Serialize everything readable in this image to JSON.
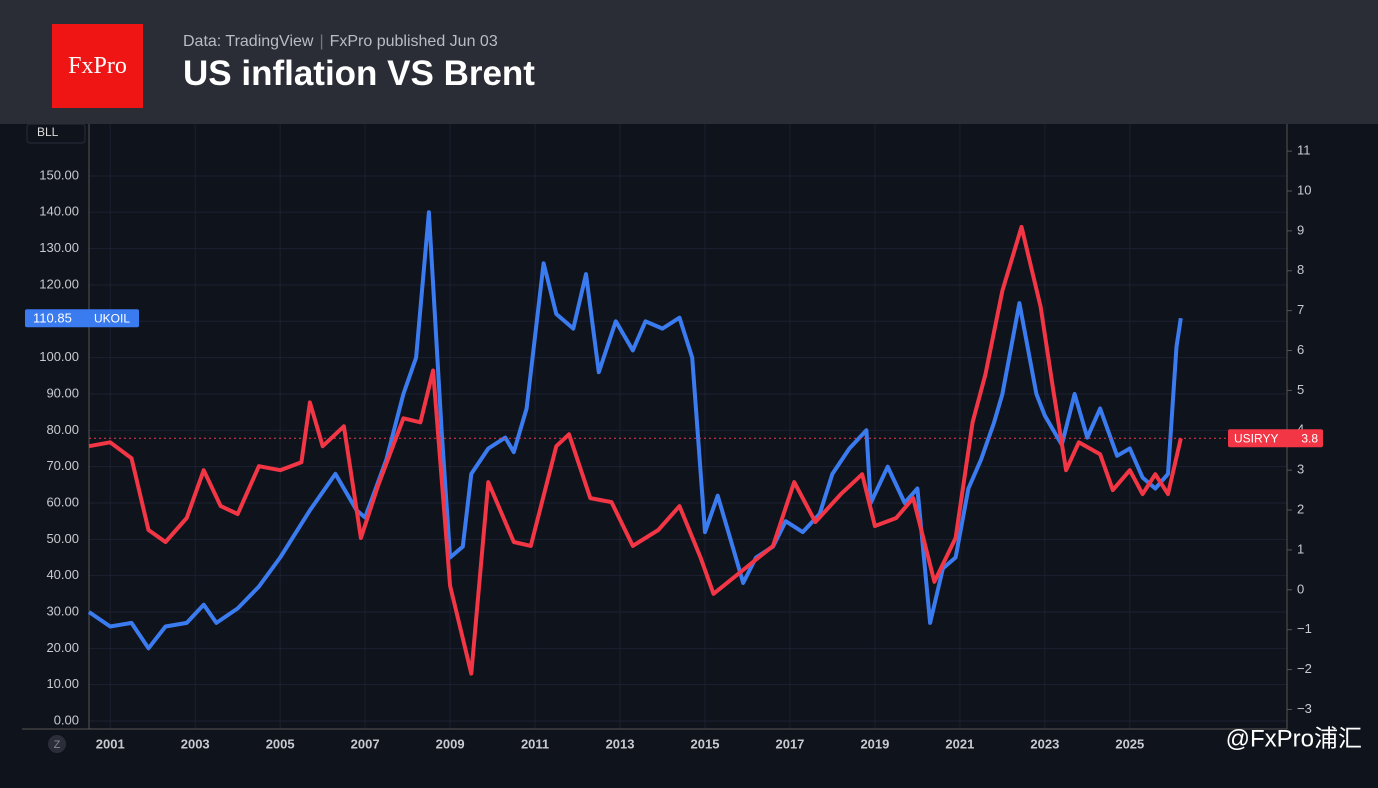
{
  "header": {
    "logo": "FxPro",
    "source": "Data: TradingView",
    "publisher": "FxPro published Jun 03",
    "title": "US inflation VS Brent"
  },
  "watermark": "@FxPro浦汇",
  "chart_data": {
    "type": "line",
    "title": "US inflation VS Brent",
    "y_unit": "BLL",
    "xlim": [
      2000.5,
      2028.7
    ],
    "xticks": [
      2001,
      2003,
      2005,
      2007,
      2009,
      2011,
      2013,
      2015,
      2017,
      2019,
      2021,
      2023,
      2025
    ],
    "ylim": [
      -2.2,
      164.3
    ],
    "yticks": [
      {
        "value": 0,
        "label": "0.00"
      },
      {
        "value": 10,
        "label": "10.00"
      },
      {
        "value": 20,
        "label": "20.00"
      },
      {
        "value": 30,
        "label": "30.00"
      },
      {
        "value": 40,
        "label": "40.00"
      },
      {
        "value": 50,
        "label": "50.00"
      },
      {
        "value": 60,
        "label": "60.00"
      },
      {
        "value": 70,
        "label": "70.00"
      },
      {
        "value": 80,
        "label": "80.00"
      },
      {
        "value": 90,
        "label": "90.00"
      },
      {
        "value": 100,
        "label": "100.00"
      },
      {
        "value": 110,
        "label": "110.00"
      },
      {
        "value": 120,
        "label": "120.00"
      },
      {
        "value": 130,
        "label": "130.00"
      },
      {
        "value": 140,
        "label": "140.00"
      },
      {
        "value": 150,
        "label": "150.00"
      }
    ],
    "y2lim": [
      -3.49,
      11.68
    ],
    "y2ticks": [
      {
        "value": -3,
        "label": "−3"
      },
      {
        "value": -2,
        "label": "−2"
      },
      {
        "value": -1,
        "label": "−1"
      },
      0,
      1,
      2,
      3,
      4,
      5,
      6,
      7,
      8,
      9,
      10,
      11
    ],
    "grid": true,
    "series": [
      {
        "name": "UKOIL",
        "color": "#3b7bf0",
        "axis": "y",
        "x": [
          2000.5,
          2001.0,
          2001.5,
          2001.9,
          2002.3,
          2002.8,
          2003.2,
          2003.5,
          2004.0,
          2004.5,
          2005.0,
          2005.7,
          2006.3,
          2006.8,
          2007.0,
          2007.5,
          2007.9,
          2008.2,
          2008.5,
          2008.8,
          2009.0,
          2009.3,
          2009.5,
          2009.9,
          2010.3,
          2010.5,
          2010.8,
          2011.2,
          2011.5,
          2011.9,
          2012.2,
          2012.5,
          2012.9,
          2013.3,
          2013.6,
          2014.0,
          2014.4,
          2014.7,
          2015.0,
          2015.3,
          2015.6,
          2015.9,
          2016.2,
          2016.6,
          2016.9,
          2017.3,
          2017.7,
          2018.0,
          2018.4,
          2018.8,
          2018.9,
          2019.3,
          2019.7,
          2020.0,
          2020.3,
          2020.6,
          2020.9,
          2021.2,
          2021.5,
          2021.8,
          2022.0,
          2022.4,
          2022.8,
          2023.0,
          2023.4,
          2023.7,
          2024.0,
          2024.3,
          2024.7,
          2025.0,
          2025.3,
          2025.6,
          2025.9,
          2026.1,
          2026.2
        ],
        "values": [
          30,
          26,
          27,
          20,
          26,
          27,
          32,
          27,
          31,
          37,
          45,
          58,
          68,
          58,
          56,
          72,
          90,
          100,
          140,
          80,
          45,
          48,
          68,
          75,
          78,
          74,
          86,
          126,
          112,
          108,
          123,
          96,
          110,
          102,
          110,
          108,
          111,
          100,
          52,
          62,
          50,
          38,
          45,
          48,
          55,
          52,
          57,
          68,
          75,
          80,
          60,
          70,
          60,
          64,
          27,
          42,
          45,
          64,
          72,
          82,
          90,
          115,
          90,
          84,
          76,
          90,
          78,
          86,
          73,
          75,
          67,
          64,
          68,
          103,
          110.85
        ]
      },
      {
        "name": "USIRYY",
        "color": "#f23645",
        "axis": "y2",
        "x": [
          2000.5,
          2001.0,
          2001.5,
          2001.9,
          2002.3,
          2002.8,
          2003.2,
          2003.6,
          2004.0,
          2004.5,
          2005.0,
          2005.5,
          2005.7,
          2006.0,
          2006.5,
          2006.9,
          2007.3,
          2007.9,
          2008.3,
          2008.6,
          2009.0,
          2009.5,
          2009.9,
          2010.5,
          2010.9,
          2011.5,
          2011.8,
          2012.3,
          2012.8,
          2013.3,
          2013.9,
          2014.4,
          2014.9,
          2015.2,
          2015.9,
          2016.6,
          2017.1,
          2017.6,
          2018.2,
          2018.7,
          2019.0,
          2019.5,
          2019.9,
          2020.4,
          2020.9,
          2021.3,
          2021.6,
          2022.0,
          2022.45,
          2022.9,
          2023.2,
          2023.5,
          2023.8,
          2024.3,
          2024.6,
          2025.0,
          2025.3,
          2025.6,
          2025.9,
          2026.2
        ],
        "values": [
          3.6,
          3.7,
          3.3,
          1.5,
          1.2,
          1.8,
          3.0,
          2.1,
          1.9,
          3.1,
          3.0,
          3.2,
          4.7,
          3.6,
          4.1,
          1.3,
          2.6,
          4.3,
          4.2,
          5.5,
          0.1,
          -2.1,
          2.7,
          1.2,
          1.1,
          3.6,
          3.9,
          2.3,
          2.2,
          1.1,
          1.5,
          2.1,
          0.8,
          -0.1,
          0.5,
          1.1,
          2.7,
          1.7,
          2.4,
          2.9,
          1.6,
          1.8,
          2.3,
          0.2,
          1.3,
          4.2,
          5.4,
          7.5,
          9.1,
          7.1,
          5.0,
          3.0,
          3.7,
          3.4,
          2.5,
          3.0,
          2.4,
          2.9,
          2.4,
          3.8
        ]
      }
    ]
  }
}
